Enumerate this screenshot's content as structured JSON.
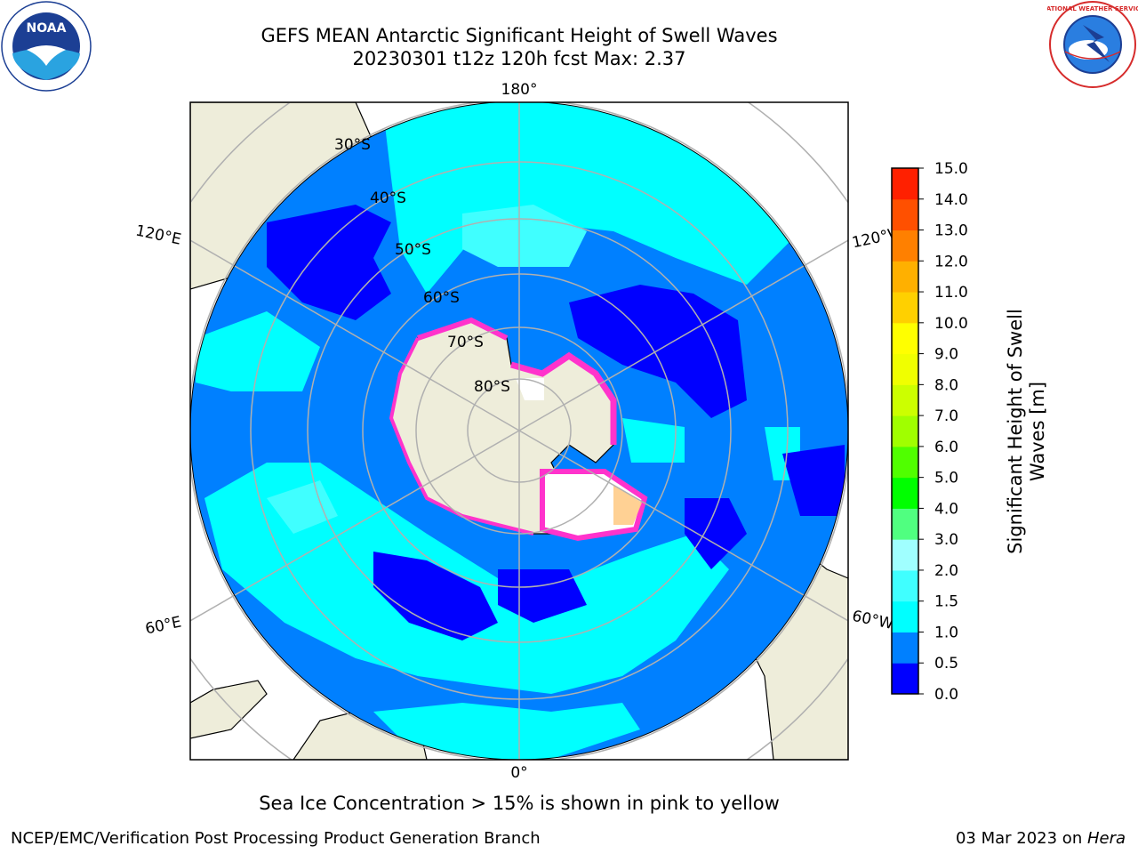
{
  "title": {
    "line1": "GEFS MEAN Antarctic Significant Height of Swell Waves",
    "line2": "20230301 t12z 120h fcst   Max: 2.37"
  },
  "map": {
    "projection": "south-polar-stereographic",
    "longitude_labels": {
      "top": "180°",
      "bottom": "0°",
      "left_upper": "120°E",
      "left_lower": "60°E",
      "right_upper": "120°W",
      "right_lower": "60°W"
    },
    "latitude_labels": [
      "30°S",
      "40°S",
      "50°S",
      "60°S",
      "70°S",
      "80°S"
    ],
    "land_color": "#eeedda",
    "sea_ice_colors": [
      "#ff33cc",
      "#ffee88"
    ]
  },
  "colorbar": {
    "label_line1": "Significant Height of Swell",
    "label_line2": "Waves [m]",
    "ticks": [
      "0.0",
      "0.5",
      "1.0",
      "1.5",
      "2.0",
      "3.0",
      "4.0",
      "5.0",
      "6.0",
      "7.0",
      "8.0",
      "9.0",
      "10.0",
      "11.0",
      "12.0",
      "13.0",
      "14.0",
      "15.0"
    ],
    "colors": [
      "#0000ff",
      "#0080ff",
      "#00ffff",
      "#40ffff",
      "#a0ffff",
      "#50ff80",
      "#00ff00",
      "#50ff00",
      "#a0ff00",
      "#ccff00",
      "#f0ff00",
      "#ffff00",
      "#ffd000",
      "#ffb000",
      "#ff8000",
      "#ff5000",
      "#ff2000"
    ]
  },
  "notes": {
    "sea_ice": "Sea Ice Concentration > 15% is shown in pink to yellow",
    "branch": "NCEP/EMC/Verification Post Processing Product Generation Branch",
    "date": "03 Mar 2023 on ",
    "host": "Hera"
  },
  "logos": {
    "noaa_text": "NOAA",
    "nws_text": "NATIONAL WEATHER SERVICE"
  }
}
